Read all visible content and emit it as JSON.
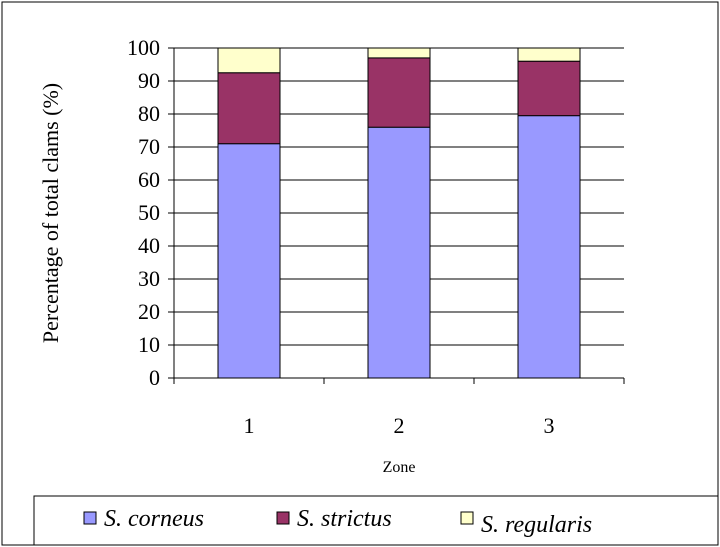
{
  "chart_data": {
    "type": "bar",
    "stacked": true,
    "categories": [
      "1",
      "2",
      "3"
    ],
    "series": [
      {
        "name": "S. corneus",
        "values": [
          71,
          76,
          79.5
        ],
        "color": "#9999ff"
      },
      {
        "name": "S. strictus",
        "values": [
          21.5,
          21,
          16.5
        ],
        "color": "#993366"
      },
      {
        "name": "S. regularis",
        "values": [
          7.5,
          3,
          4
        ],
        "color": "#ffffcc"
      }
    ],
    "title": "",
    "xlabel": "Zone",
    "ylabel": "Percentage of total clams (%)",
    "ylim": [
      0,
      100
    ],
    "yticks": [
      "0",
      "10",
      "20",
      "30",
      "40",
      "50",
      "60",
      "70",
      "80",
      "90",
      "100"
    ],
    "grid": true,
    "legend_position": "bottom"
  }
}
